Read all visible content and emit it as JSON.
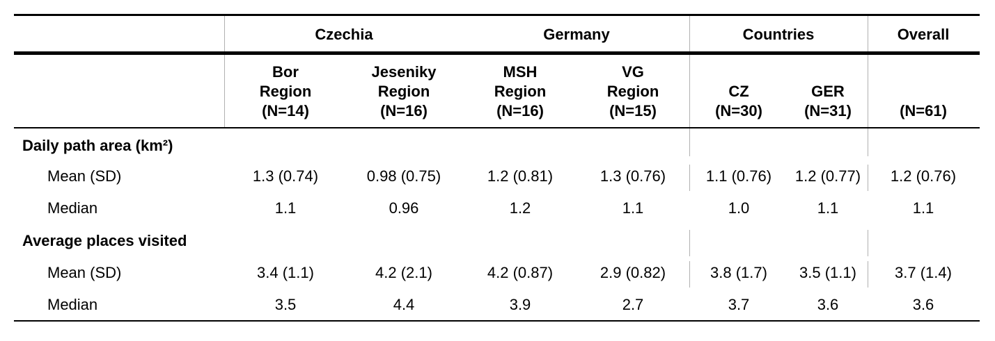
{
  "groups": [
    {
      "label": "Czechia"
    },
    {
      "label": "Germany"
    },
    {
      "label": "Countries"
    },
    {
      "label": "Overall"
    }
  ],
  "columns": [
    {
      "lines": [
        "Bor",
        "Region",
        "(N=14)"
      ]
    },
    {
      "lines": [
        "Jeseniky",
        "Region",
        "(N=16)"
      ]
    },
    {
      "lines": [
        "MSH",
        "Region",
        "(N=16)"
      ]
    },
    {
      "lines": [
        "VG",
        "Region",
        "(N=15)"
      ]
    },
    {
      "lines": [
        "CZ",
        "(N=30)"
      ]
    },
    {
      "lines": [
        "GER",
        "(N=31)"
      ]
    },
    {
      "lines": [
        "(N=61)"
      ]
    }
  ],
  "sections": [
    {
      "title": "Daily path area (km²)",
      "rows": [
        {
          "label": "Mean (SD)",
          "values": [
            "1.3 (0.74)",
            "0.98 (0.75)",
            "1.2 (0.81)",
            "1.3 (0.76)",
            "1.1 (0.76)",
            "1.2 (0.77)",
            "1.2 (0.76)"
          ]
        },
        {
          "label": "Median",
          "values": [
            "1.1",
            "0.96",
            "1.2",
            "1.1",
            "1.0",
            "1.1",
            "1.1"
          ]
        }
      ]
    },
    {
      "title": "Average places visited",
      "rows": [
        {
          "label": "Mean (SD)",
          "values": [
            "3.4 (1.1)",
            "4.2 (2.1)",
            "4.2 (0.87)",
            "2.9 (0.82)",
            "3.8 (1.7)",
            "3.5 (1.1)",
            "3.7 (1.4)"
          ]
        },
        {
          "label": "Median",
          "values": [
            "3.5",
            "4.4",
            "3.9",
            "2.7",
            "3.7",
            "3.6",
            "3.6"
          ]
        }
      ]
    }
  ]
}
